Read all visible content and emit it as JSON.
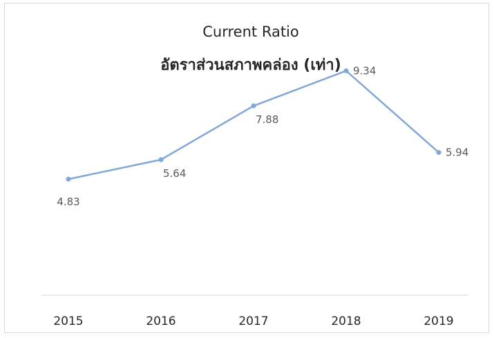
{
  "chart_data": {
    "type": "line",
    "title": "Current Ratio",
    "subtitle": "อัตราส่วนสภาพคล่อง (เท่า)",
    "categories": [
      "2015",
      "2016",
      "2017",
      "2018",
      "2019"
    ],
    "series": [
      {
        "values": [
          4.83,
          5.64,
          7.88,
          9.34,
          5.94
        ]
      }
    ],
    "data_labels": [
      "4.83",
      "5.64",
      "7.88",
      "9.34",
      "5.94"
    ],
    "xlabel": "",
    "ylabel": "",
    "ylim": [
      0,
      12
    ],
    "grid": false,
    "line_color": "#7fa7d8"
  }
}
